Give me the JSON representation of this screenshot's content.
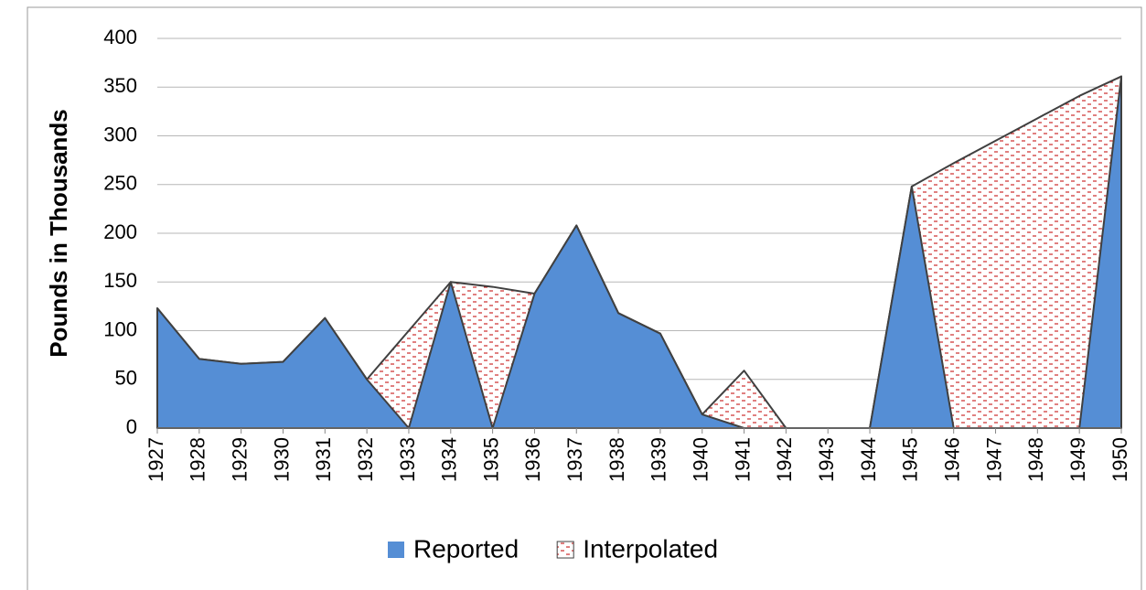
{
  "chart_data": {
    "type": "area",
    "y_label": "Pounds in Thousands",
    "categories": [
      "1927",
      "1928",
      "1929",
      "1930",
      "1931",
      "1932",
      "1933",
      "1934",
      "1935",
      "1936",
      "1937",
      "1938",
      "1939",
      "1940",
      "1941",
      "1942",
      "1943",
      "1944",
      "1945",
      "1946",
      "1947",
      "1948",
      "1949",
      "1950"
    ],
    "series": [
      {
        "name": "Interpolated",
        "color": "#c00000",
        "values": [
          123,
          71,
          66,
          68,
          113,
          50,
          100,
          150,
          145,
          138,
          208,
          118,
          97,
          14,
          59,
          0,
          0,
          0,
          248,
          272,
          295,
          318,
          341,
          361
        ]
      },
      {
        "name": "Reported",
        "color": "#558ed5",
        "values": [
          123,
          71,
          66,
          68,
          113,
          50,
          0,
          150,
          0,
          138,
          208,
          118,
          97,
          14,
          0,
          0,
          0,
          0,
          248,
          0,
          0,
          0,
          0,
          361
        ]
      }
    ],
    "ylim": [
      0,
      400
    ],
    "yticks": [
      0,
      50,
      100,
      150,
      200,
      250,
      300,
      350,
      400
    ],
    "grid": true,
    "legend": "bottom"
  }
}
